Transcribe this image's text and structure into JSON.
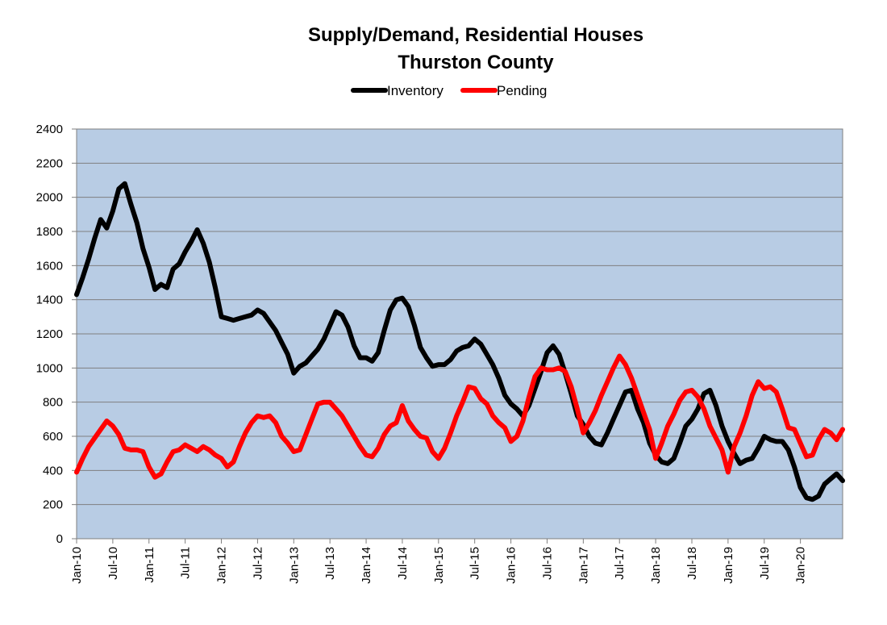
{
  "chart_data": {
    "type": "line",
    "title": "Supply/Demand, Residential Houses",
    "subtitle": "Thurston County",
    "legend_position": "top-center",
    "grid": true,
    "colors": {
      "plot_bg": "#b8cce4",
      "Inventory": "#000000",
      "Pending": "#ff0000"
    },
    "ylim": [
      0,
      2400
    ],
    "y_ticks": [
      "0",
      "200",
      "400",
      "600",
      "800",
      "1000",
      "1200",
      "1400",
      "1600",
      "1800",
      "2000",
      "2200",
      "2400"
    ],
    "x_range": [
      "2010-01",
      "2020-08"
    ],
    "x_ticks": [
      {
        "label": "Jan-10",
        "date": "2010-01"
      },
      {
        "label": "Jul-10",
        "date": "2010-07"
      },
      {
        "label": "Jan-11",
        "date": "2011-01"
      },
      {
        "label": "Jul-11",
        "date": "2011-07"
      },
      {
        "label": "Jan-12",
        "date": "2012-01"
      },
      {
        "label": "Jul-12",
        "date": "2012-07"
      },
      {
        "label": "Jan-13",
        "date": "2013-01"
      },
      {
        "label": "Jul-13",
        "date": "2013-07"
      },
      {
        "label": "Jan-14",
        "date": "2014-01"
      },
      {
        "label": "Jul-14",
        "date": "2014-07"
      },
      {
        "label": "Jan-15",
        "date": "2015-01"
      },
      {
        "label": "Jul-15",
        "date": "2015-07"
      },
      {
        "label": "Jan-16",
        "date": "2016-01"
      },
      {
        "label": "Jul-16",
        "date": "2016-07"
      },
      {
        "label": "Jan-17",
        "date": "2017-01"
      },
      {
        "label": "Jul-17",
        "date": "2017-07"
      },
      {
        "label": "Jan-18",
        "date": "2018-01"
      },
      {
        "label": "Jul-18",
        "date": "2018-07"
      },
      {
        "label": "Jan-19",
        "date": "2019-01"
      },
      {
        "label": "Jul-19",
        "date": "2019-07"
      },
      {
        "label": "Jan-20",
        "date": "2020-01"
      }
    ],
    "series": [
      {
        "name": "Inventory",
        "points": [
          [
            "2010-01",
            1430
          ],
          [
            "2010-02",
            1530
          ],
          [
            "2010-03",
            1640
          ],
          [
            "2010-04",
            1760
          ],
          [
            "2010-05",
            1870
          ],
          [
            "2010-06",
            1820
          ],
          [
            "2010-07",
            1920
          ],
          [
            "2010-08",
            2050
          ],
          [
            "2010-09",
            2080
          ],
          [
            "2010-10",
            1960
          ],
          [
            "2010-11",
            1850
          ],
          [
            "2010-12",
            1700
          ],
          [
            "2011-01",
            1590
          ],
          [
            "2011-02",
            1460
          ],
          [
            "2011-03",
            1490
          ],
          [
            "2011-04",
            1470
          ],
          [
            "2011-05",
            1580
          ],
          [
            "2011-06",
            1610
          ],
          [
            "2011-07",
            1680
          ],
          [
            "2011-08",
            1740
          ],
          [
            "2011-09",
            1810
          ],
          [
            "2011-10",
            1730
          ],
          [
            "2011-11",
            1620
          ],
          [
            "2011-12",
            1470
          ],
          [
            "2012-01",
            1300
          ],
          [
            "2012-02",
            1290
          ],
          [
            "2012-03",
            1280
          ],
          [
            "2012-04",
            1290
          ],
          [
            "2012-05",
            1300
          ],
          [
            "2012-06",
            1310
          ],
          [
            "2012-07",
            1340
          ],
          [
            "2012-08",
            1320
          ],
          [
            "2012-09",
            1270
          ],
          [
            "2012-10",
            1220
          ],
          [
            "2012-11",
            1150
          ],
          [
            "2012-12",
            1080
          ],
          [
            "2013-01",
            970
          ],
          [
            "2013-02",
            1010
          ],
          [
            "2013-03",
            1030
          ],
          [
            "2013-04",
            1070
          ],
          [
            "2013-05",
            1110
          ],
          [
            "2013-06",
            1170
          ],
          [
            "2013-07",
            1250
          ],
          [
            "2013-08",
            1330
          ],
          [
            "2013-09",
            1310
          ],
          [
            "2013-10",
            1240
          ],
          [
            "2013-11",
            1130
          ],
          [
            "2013-12",
            1060
          ],
          [
            "2014-01",
            1060
          ],
          [
            "2014-02",
            1040
          ],
          [
            "2014-03",
            1090
          ],
          [
            "2014-04",
            1220
          ],
          [
            "2014-05",
            1340
          ],
          [
            "2014-06",
            1400
          ],
          [
            "2014-07",
            1410
          ],
          [
            "2014-08",
            1360
          ],
          [
            "2014-09",
            1250
          ],
          [
            "2014-10",
            1120
          ],
          [
            "2014-11",
            1060
          ],
          [
            "2014-12",
            1010
          ],
          [
            "2015-01",
            1020
          ],
          [
            "2015-02",
            1020
          ],
          [
            "2015-03",
            1050
          ],
          [
            "2015-04",
            1100
          ],
          [
            "2015-05",
            1120
          ],
          [
            "2015-06",
            1130
          ],
          [
            "2015-07",
            1170
          ],
          [
            "2015-08",
            1140
          ],
          [
            "2015-09",
            1080
          ],
          [
            "2015-10",
            1020
          ],
          [
            "2015-11",
            940
          ],
          [
            "2015-12",
            840
          ],
          [
            "2016-01",
            790
          ],
          [
            "2016-02",
            760
          ],
          [
            "2016-03",
            720
          ],
          [
            "2016-04",
            780
          ],
          [
            "2016-05",
            880
          ],
          [
            "2016-06",
            980
          ],
          [
            "2016-07",
            1090
          ],
          [
            "2016-08",
            1130
          ],
          [
            "2016-09",
            1080
          ],
          [
            "2016-10",
            970
          ],
          [
            "2016-11",
            850
          ],
          [
            "2016-12",
            720
          ],
          [
            "2017-01",
            670
          ],
          [
            "2017-02",
            600
          ],
          [
            "2017-03",
            560
          ],
          [
            "2017-04",
            550
          ],
          [
            "2017-05",
            620
          ],
          [
            "2017-06",
            700
          ],
          [
            "2017-07",
            780
          ],
          [
            "2017-08",
            860
          ],
          [
            "2017-09",
            870
          ],
          [
            "2017-10",
            760
          ],
          [
            "2017-11",
            680
          ],
          [
            "2017-12",
            560
          ],
          [
            "2018-01",
            490
          ],
          [
            "2018-02",
            450
          ],
          [
            "2018-03",
            440
          ],
          [
            "2018-04",
            470
          ],
          [
            "2018-05",
            560
          ],
          [
            "2018-06",
            660
          ],
          [
            "2018-07",
            700
          ],
          [
            "2018-08",
            760
          ],
          [
            "2018-09",
            850
          ],
          [
            "2018-10",
            870
          ],
          [
            "2018-11",
            780
          ],
          [
            "2018-12",
            660
          ],
          [
            "2019-01",
            570
          ],
          [
            "2019-02",
            500
          ],
          [
            "2019-03",
            440
          ],
          [
            "2019-04",
            460
          ],
          [
            "2019-05",
            470
          ],
          [
            "2019-06",
            530
          ],
          [
            "2019-07",
            600
          ],
          [
            "2019-08",
            580
          ],
          [
            "2019-09",
            570
          ],
          [
            "2019-10",
            570
          ],
          [
            "2019-11",
            520
          ],
          [
            "2019-12",
            420
          ],
          [
            "2020-01",
            300
          ],
          [
            "2020-02",
            240
          ],
          [
            "2020-03",
            230
          ],
          [
            "2020-04",
            250
          ],
          [
            "2020-05",
            320
          ],
          [
            "2020-06",
            350
          ],
          [
            "2020-07",
            380
          ],
          [
            "2020-08",
            340
          ]
        ]
      },
      {
        "name": "Pending",
        "points": [
          [
            "2010-01",
            390
          ],
          [
            "2010-02",
            470
          ],
          [
            "2010-03",
            540
          ],
          [
            "2010-04",
            590
          ],
          [
            "2010-05",
            640
          ],
          [
            "2010-06",
            690
          ],
          [
            "2010-07",
            660
          ],
          [
            "2010-08",
            610
          ],
          [
            "2010-09",
            530
          ],
          [
            "2010-10",
            520
          ],
          [
            "2010-11",
            520
          ],
          [
            "2010-12",
            510
          ],
          [
            "2011-01",
            420
          ],
          [
            "2011-02",
            360
          ],
          [
            "2011-03",
            380
          ],
          [
            "2011-04",
            450
          ],
          [
            "2011-05",
            510
          ],
          [
            "2011-06",
            520
          ],
          [
            "2011-07",
            550
          ],
          [
            "2011-08",
            530
          ],
          [
            "2011-09",
            510
          ],
          [
            "2011-10",
            540
          ],
          [
            "2011-11",
            520
          ],
          [
            "2011-12",
            490
          ],
          [
            "2012-01",
            470
          ],
          [
            "2012-02",
            420
          ],
          [
            "2012-03",
            450
          ],
          [
            "2012-04",
            540
          ],
          [
            "2012-05",
            620
          ],
          [
            "2012-06",
            680
          ],
          [
            "2012-07",
            720
          ],
          [
            "2012-08",
            710
          ],
          [
            "2012-09",
            720
          ],
          [
            "2012-10",
            680
          ],
          [
            "2012-11",
            600
          ],
          [
            "2012-12",
            560
          ],
          [
            "2013-01",
            510
          ],
          [
            "2013-02",
            520
          ],
          [
            "2013-03",
            610
          ],
          [
            "2013-04",
            700
          ],
          [
            "2013-05",
            790
          ],
          [
            "2013-06",
            800
          ],
          [
            "2013-07",
            800
          ],
          [
            "2013-08",
            760
          ],
          [
            "2013-09",
            720
          ],
          [
            "2013-10",
            660
          ],
          [
            "2013-11",
            600
          ],
          [
            "2013-12",
            540
          ],
          [
            "2014-01",
            490
          ],
          [
            "2014-02",
            480
          ],
          [
            "2014-03",
            530
          ],
          [
            "2014-04",
            610
          ],
          [
            "2014-05",
            660
          ],
          [
            "2014-06",
            680
          ],
          [
            "2014-07",
            780
          ],
          [
            "2014-08",
            690
          ],
          [
            "2014-09",
            640
          ],
          [
            "2014-10",
            600
          ],
          [
            "2014-11",
            590
          ],
          [
            "2014-12",
            510
          ],
          [
            "2015-01",
            470
          ],
          [
            "2015-02",
            530
          ],
          [
            "2015-03",
            620
          ],
          [
            "2015-04",
            720
          ],
          [
            "2015-05",
            800
          ],
          [
            "2015-06",
            890
          ],
          [
            "2015-07",
            880
          ],
          [
            "2015-08",
            820
          ],
          [
            "2015-09",
            790
          ],
          [
            "2015-10",
            720
          ],
          [
            "2015-11",
            680
          ],
          [
            "2015-12",
            650
          ],
          [
            "2016-01",
            570
          ],
          [
            "2016-02",
            600
          ],
          [
            "2016-03",
            690
          ],
          [
            "2016-04",
            830
          ],
          [
            "2016-05",
            950
          ],
          [
            "2016-06",
            1000
          ],
          [
            "2016-07",
            990
          ],
          [
            "2016-08",
            990
          ],
          [
            "2016-09",
            1000
          ],
          [
            "2016-10",
            980
          ],
          [
            "2016-11",
            890
          ],
          [
            "2016-12",
            760
          ],
          [
            "2017-01",
            620
          ],
          [
            "2017-02",
            680
          ],
          [
            "2017-03",
            750
          ],
          [
            "2017-04",
            840
          ],
          [
            "2017-05",
            920
          ],
          [
            "2017-06",
            1000
          ],
          [
            "2017-07",
            1070
          ],
          [
            "2017-08",
            1020
          ],
          [
            "2017-09",
            940
          ],
          [
            "2017-10",
            840
          ],
          [
            "2017-11",
            740
          ],
          [
            "2017-12",
            640
          ],
          [
            "2018-01",
            470
          ],
          [
            "2018-02",
            560
          ],
          [
            "2018-03",
            660
          ],
          [
            "2018-04",
            730
          ],
          [
            "2018-05",
            810
          ],
          [
            "2018-06",
            860
          ],
          [
            "2018-07",
            870
          ],
          [
            "2018-08",
            830
          ],
          [
            "2018-09",
            760
          ],
          [
            "2018-10",
            660
          ],
          [
            "2018-11",
            590
          ],
          [
            "2018-12",
            520
          ],
          [
            "2019-01",
            390
          ],
          [
            "2019-02",
            540
          ],
          [
            "2019-03",
            620
          ],
          [
            "2019-04",
            720
          ],
          [
            "2019-05",
            840
          ],
          [
            "2019-06",
            920
          ],
          [
            "2019-07",
            880
          ],
          [
            "2019-08",
            890
          ],
          [
            "2019-09",
            860
          ],
          [
            "2019-10",
            760
          ],
          [
            "2019-11",
            650
          ],
          [
            "2019-12",
            640
          ],
          [
            "2020-01",
            560
          ],
          [
            "2020-02",
            480
          ],
          [
            "2020-03",
            490
          ],
          [
            "2020-04",
            580
          ],
          [
            "2020-05",
            640
          ],
          [
            "2020-06",
            620
          ],
          [
            "2020-07",
            580
          ],
          [
            "2020-08",
            640
          ]
        ]
      }
    ]
  }
}
